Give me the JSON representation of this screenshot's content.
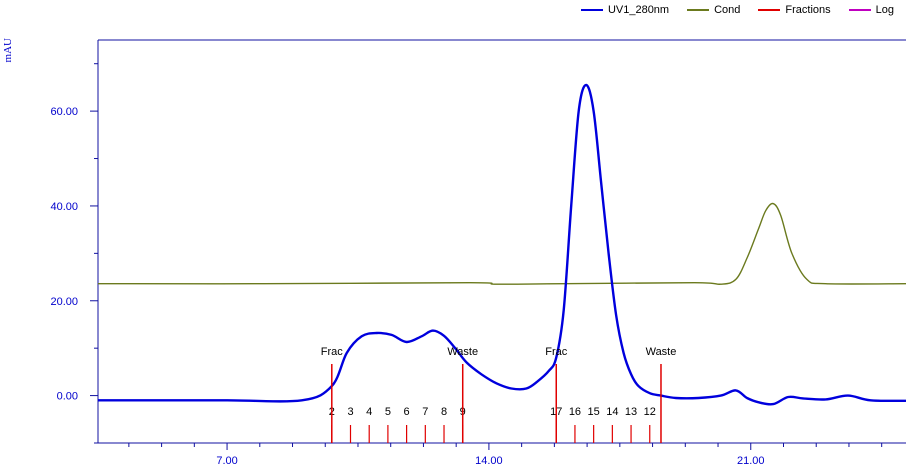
{
  "chart_data": {
    "type": "line",
    "ylabel": "mAU",
    "xlabel": "",
    "title": "",
    "xlim": [
      3.55,
      25.15
    ],
    "ylim": [
      -10,
      75
    ],
    "x_ticks": [
      7.0,
      14.0,
      21.0
    ],
    "x_tick_labels": [
      "7.00",
      "14.00",
      "21.00"
    ],
    "y_ticks": [
      0,
      20,
      40,
      60
    ],
    "y_tick_labels": [
      "0.00",
      "20.00",
      "40.00",
      "60.00"
    ],
    "legend_position": "top-right",
    "series": [
      {
        "name": "UV1_280nm",
        "color": "#0000dd",
        "x": [
          3.55,
          5.0,
          7.0,
          9.0,
          9.8,
          10.2,
          10.6,
          11.0,
          11.4,
          11.8,
          12.2,
          12.5,
          12.8,
          13.1,
          13.4,
          13.8,
          14.2,
          14.6,
          15.0,
          15.3,
          15.6,
          15.8,
          16.0,
          16.2,
          16.4,
          16.6,
          16.8,
          17.0,
          17.2,
          17.4,
          17.6,
          17.8,
          18.0,
          18.3,
          18.6,
          19.0,
          19.6,
          20.2,
          20.6,
          20.9,
          21.2,
          21.6,
          22.0,
          22.4,
          23.0,
          23.6,
          24.2,
          25.15
        ],
        "values": [
          -1.0,
          -1.0,
          -1.0,
          -1.0,
          2.0,
          9.0,
          12.5,
          13.2,
          12.8,
          11.3,
          12.5,
          13.7,
          12.6,
          10.0,
          7.0,
          4.5,
          2.6,
          1.5,
          1.5,
          3.0,
          5.2,
          8.0,
          18.0,
          40.0,
          60.0,
          65.5,
          60.0,
          45.0,
          30.0,
          17.0,
          9.0,
          4.5,
          2.0,
          0.5,
          0.0,
          -0.5,
          -0.5,
          0.0,
          1.1,
          -0.5,
          -1.4,
          -1.8,
          -0.3,
          -0.6,
          -0.8,
          0.0,
          -1.0,
          -1.1
        ]
      },
      {
        "name": "Cond",
        "color": "#6b7a1e",
        "x": [
          3.55,
          8.0,
          13.5,
          14.2,
          16.0,
          19.5,
          20.2,
          20.6,
          20.9,
          21.2,
          21.4,
          21.6,
          21.8,
          22.1,
          22.5,
          23.0,
          25.15
        ],
        "values": [
          23.6,
          23.6,
          23.8,
          23.5,
          23.6,
          23.8,
          23.5,
          24.5,
          29.0,
          35.0,
          39.0,
          40.5,
          38.0,
          30.0,
          24.5,
          23.6,
          23.6
        ]
      },
      {
        "name": "Fractions",
        "color": "#e00000"
      },
      {
        "name": "Log",
        "color": "#c000c0"
      }
    ],
    "fractions": {
      "major": [
        {
          "x": 9.8,
          "label": "Frac"
        },
        {
          "x": 13.3,
          "label": "Waste"
        },
        {
          "x": 15.8,
          "label": "Frac"
        },
        {
          "x": 18.6,
          "label": "Waste"
        }
      ],
      "minor": [
        {
          "x": 9.8,
          "label": "2"
        },
        {
          "x": 10.3,
          "label": "3"
        },
        {
          "x": 10.8,
          "label": "4"
        },
        {
          "x": 11.3,
          "label": "5"
        },
        {
          "x": 11.8,
          "label": "6"
        },
        {
          "x": 12.3,
          "label": "7"
        },
        {
          "x": 12.8,
          "label": "8"
        },
        {
          "x": 13.3,
          "label": "9"
        },
        {
          "x": 15.8,
          "label": "17"
        },
        {
          "x": 16.3,
          "label": "16"
        },
        {
          "x": 16.8,
          "label": "15"
        },
        {
          "x": 17.3,
          "label": "14"
        },
        {
          "x": 17.8,
          "label": "13"
        },
        {
          "x": 18.3,
          "label": "12"
        }
      ]
    }
  }
}
